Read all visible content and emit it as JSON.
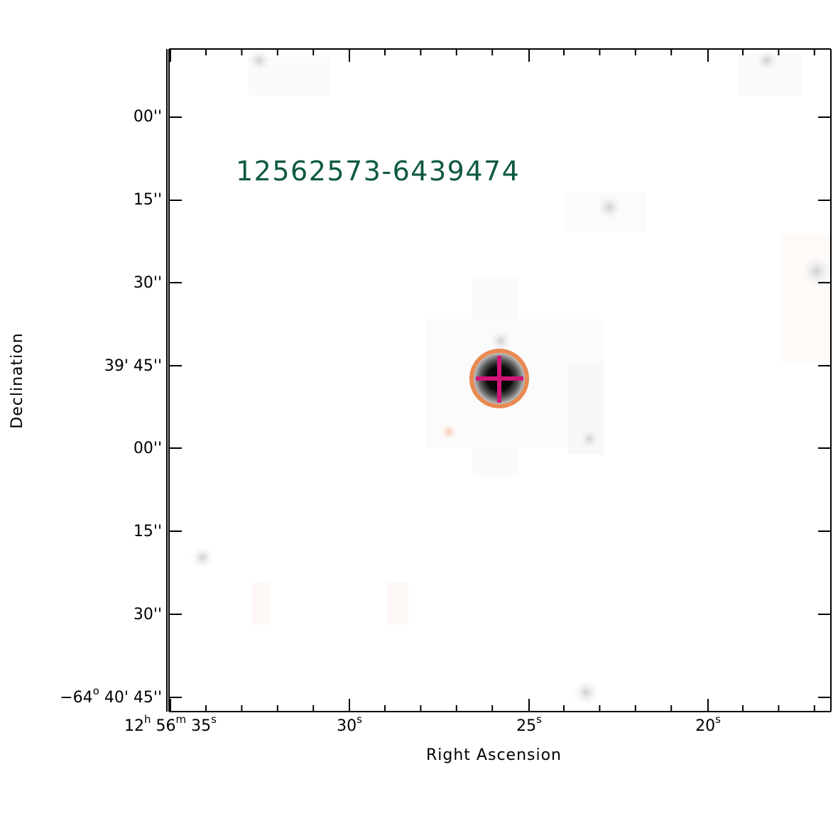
{
  "source_label": "12562573-6439474",
  "axes": {
    "x_title": "Right Ascension",
    "y_title": "Declination",
    "x_ticks": [
      {
        "h": "12",
        "h_unit": "h",
        "m": "56",
        "m_unit": "m",
        "s": "35",
        "s_unit": "s"
      },
      {
        "s": "30",
        "s_unit": "s"
      },
      {
        "s": "25",
        "s_unit": "s"
      },
      {
        "s": "20",
        "s_unit": "s"
      }
    ],
    "y_ticks": [
      {
        "text": "00''"
      },
      {
        "text": "15''"
      },
      {
        "text": "30''"
      },
      {
        "text": "39' 45''"
      },
      {
        "text": "00''"
      },
      {
        "text": "15''"
      },
      {
        "text": "30''"
      },
      {
        "deg": "−64",
        "deg_unit": "o",
        "rest": " 40' 45''"
      }
    ]
  },
  "marker_colors": {
    "circle": "#e88a52",
    "crosshair": "#d0147a",
    "label": "#0e5a3e"
  }
}
